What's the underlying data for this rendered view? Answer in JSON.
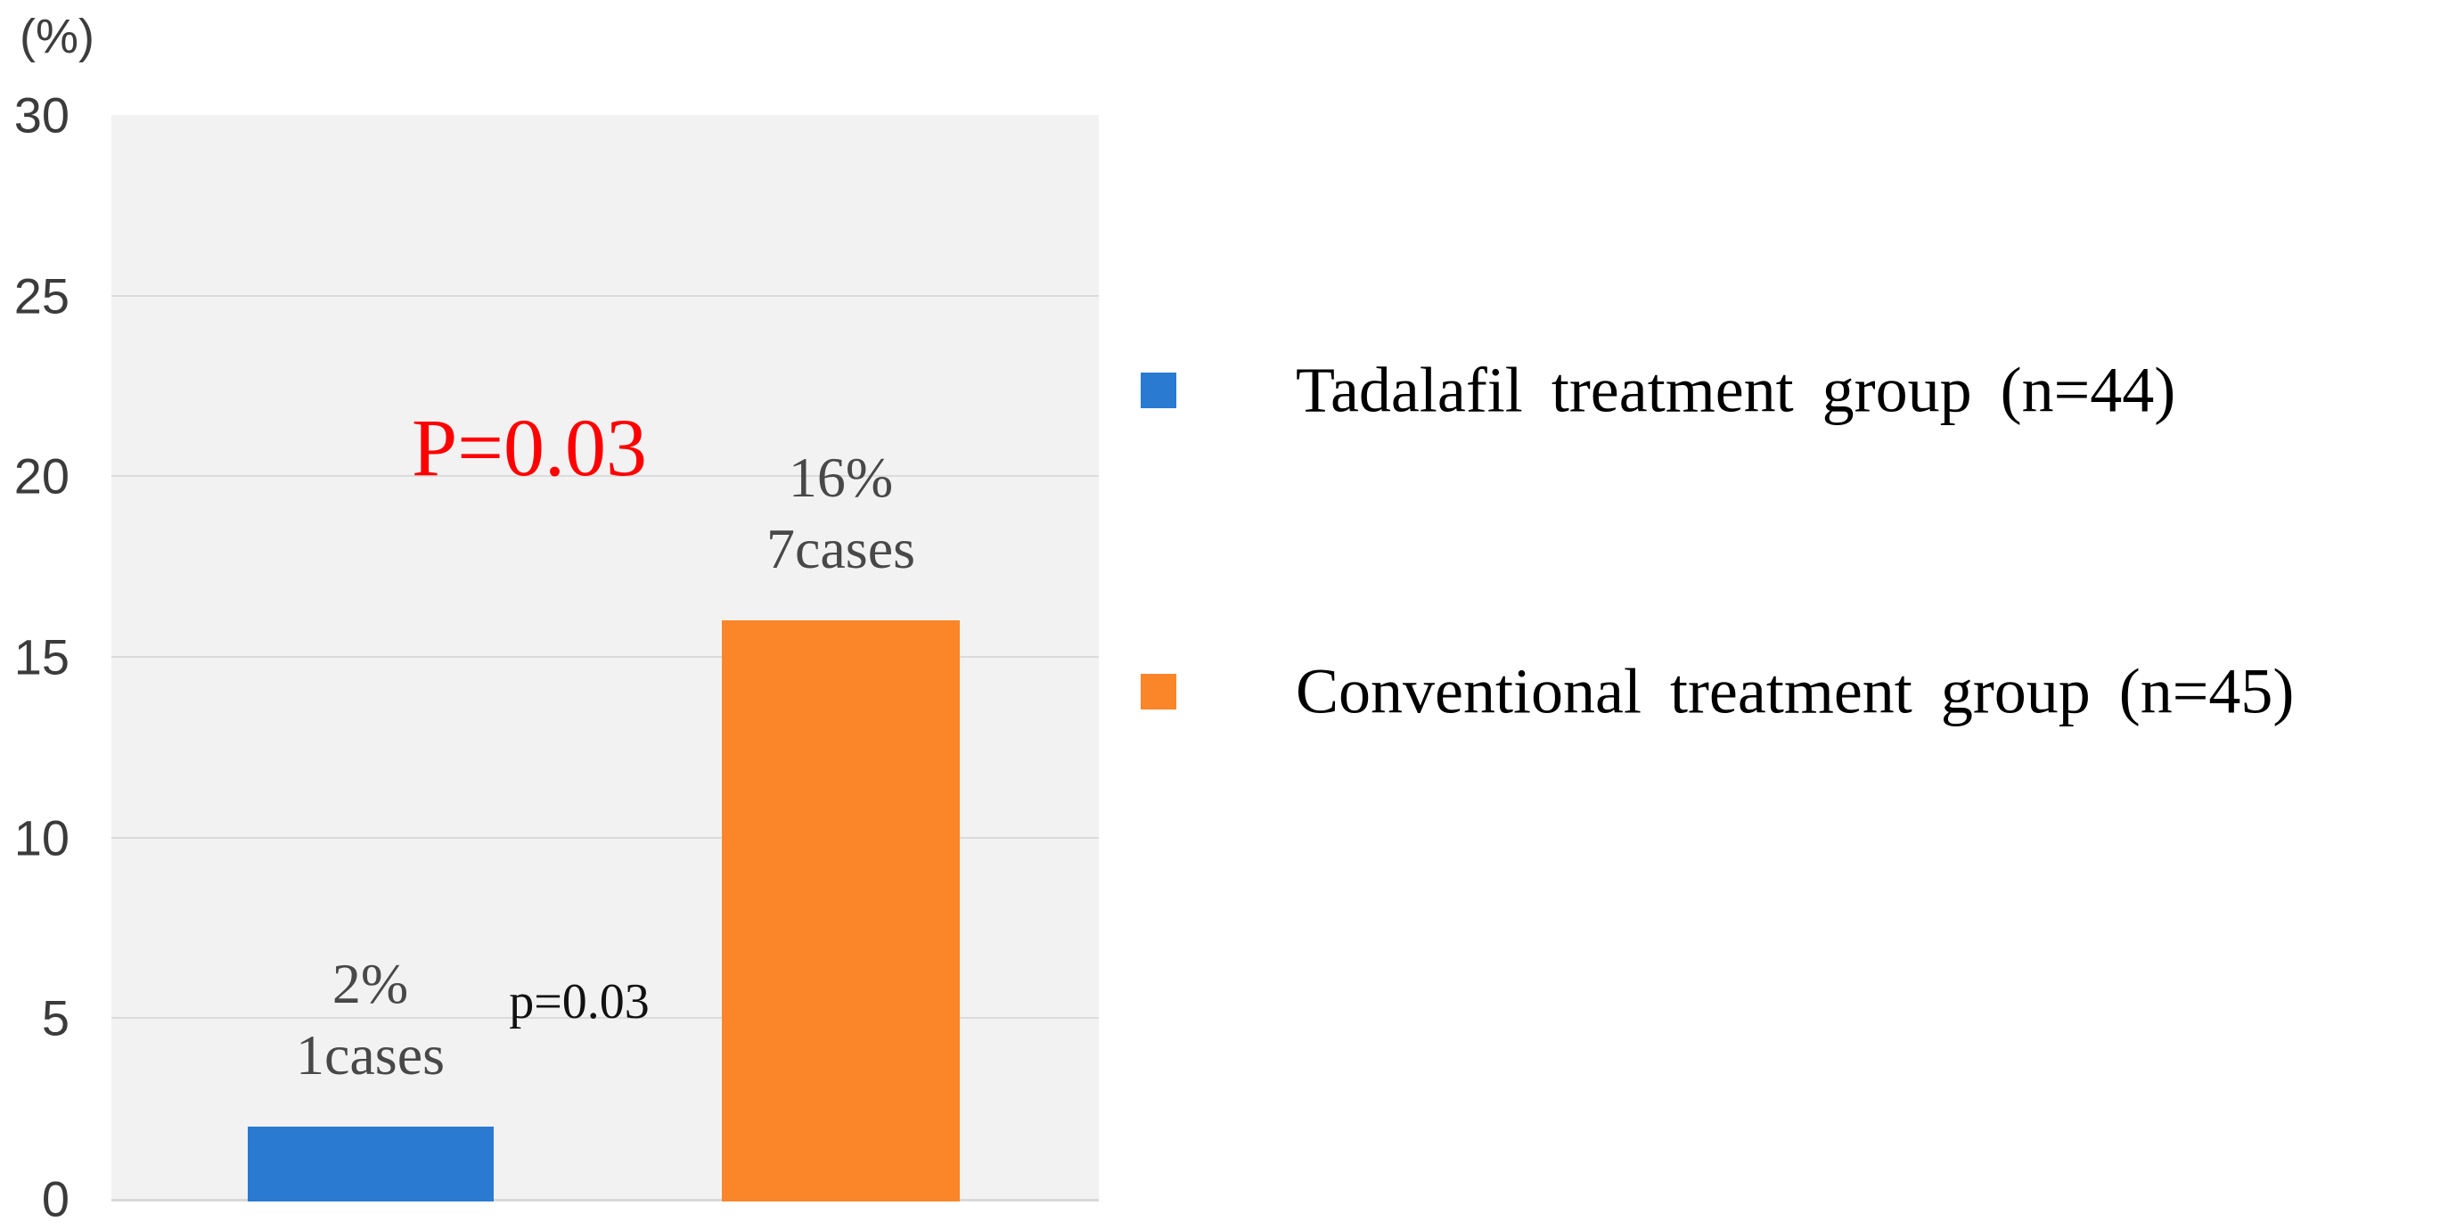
{
  "chart_data": {
    "type": "bar",
    "title": "",
    "y_axis_unit": "(%)",
    "ylim": [
      0,
      30
    ],
    "yticks": [
      0,
      5,
      10,
      15,
      20,
      25,
      30
    ],
    "grid": true,
    "plot_background": "#F2F2F2",
    "gridline_color": "#DBDBDB",
    "legend_position": "right",
    "bars": [
      {
        "name": "Tadalafil treatment group (n=44)",
        "value": 2,
        "percent_label": "2%",
        "cases_label": "1cases",
        "color": "#2A7AD2"
      },
      {
        "name": "Conventional treatment group (n=45)",
        "value": 16,
        "percent_label": "16%",
        "cases_label": "7cases",
        "color": "#FB8629"
      }
    ],
    "annotations": [
      {
        "text": "P=0.03",
        "color": "#FF0000"
      },
      {
        "text": "p=0.03",
        "color": "#111111"
      }
    ]
  }
}
